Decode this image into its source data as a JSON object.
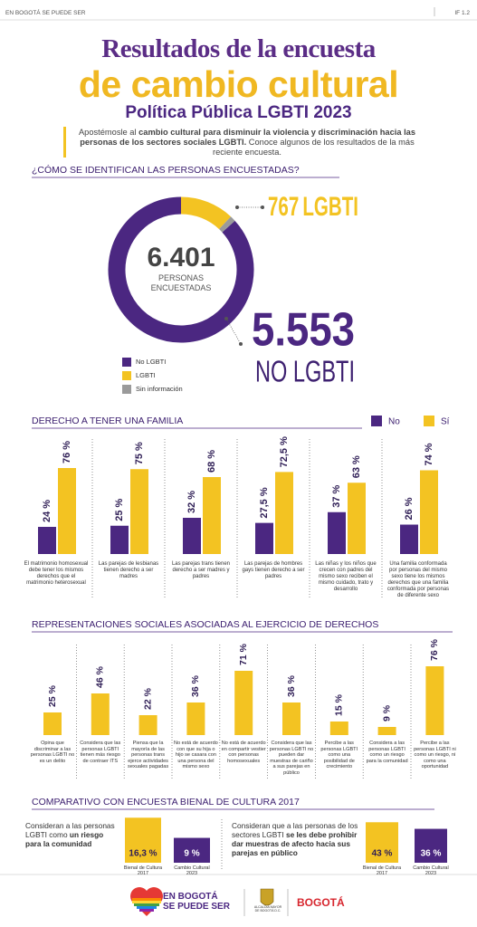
{
  "header": {
    "top_left": "EN BOGOTÁ SE PUEDE SER",
    "top_right": "IF 1.2",
    "title_line1": "Resultados de la encuesta",
    "title_line2": "de cambio cultural",
    "subtitle": "Política Pública LGBTI 2023",
    "intro": [
      {
        "text": "Apostémosle al "
      },
      {
        "text": "cambio cultural para disminuir la violencia y discriminación hacia las personas de los sectores sociales LGBTI.",
        "bold": true
      },
      {
        "text": " Conoce algunos de los resultados de la más reciente encuesta."
      }
    ]
  },
  "chart_data": [
    {
      "type": "pie",
      "donut": true,
      "title": "¿CÓMO SE IDENTIFICAN LAS PERSONAS ENCUESTADAS?",
      "center_text": "6.401",
      "center_label": "PERSONAS ENCUESTADAS",
      "categories": [
        "No LGBTI",
        "LGBTI",
        "Sin información"
      ],
      "values": [
        5553,
        767,
        81
      ],
      "value_labels": [
        "5.553",
        "767",
        null
      ],
      "callout_texts": [
        "NO LGBTI",
        "LGBTI",
        null
      ],
      "colors": [
        "#4b2781",
        "#f3c322",
        "#9a9a9a"
      ]
    },
    {
      "type": "grouped_bar",
      "title": "DERECHO A TENER UNA FAMILIA",
      "categories": [
        "El matrimonio homosexual debe tener los mismos derechos que el matrimonio heterosexual",
        "Las parejas de lesbianas tienen derecho a ser madres",
        "Las parejas trans tienen derecho a ser madres y padres",
        "Las parejas de hombres gays tienen derecho a ser padres",
        "Las niñas y los niños que crecen con padres del mismo sexo reciben el mismo cuidado, trato y desarrollo",
        "Una familia conformada por personas del mismo sexo tiene los mismos derechos que una familia conformada por personas de diferente sexo"
      ],
      "series": [
        {
          "name": "No",
          "color": "#4b2781",
          "values": [
            24,
            25,
            32,
            27.5,
            37,
            26
          ],
          "value_labels": [
            "24 %",
            "25 %",
            "32 %",
            "27,5 %",
            "37 %",
            "26 %"
          ]
        },
        {
          "name": "Sí",
          "color": "#f3c322",
          "values": [
            76,
            75,
            68,
            72.5,
            63,
            74
          ],
          "value_labels": [
            "76 %",
            "75 %",
            "68 %",
            "72,5 %",
            "63 %",
            "74 %"
          ]
        }
      ],
      "ylim": [
        0,
        100
      ]
    },
    {
      "type": "bar",
      "title": "REPRESENTACIONES SOCIALES ASOCIADAS AL EJERCICIO DE DERECHOS",
      "categories": [
        "Opina que discriminar a las personas LGBTI no es un delito",
        "Considera que las personas LGBTI tienen más riesgo de contraer ITS",
        "Piensa que la mayoría de las personas trans ejerce actividades sexuales pagadas",
        "No está de acuerdo con que su hija o hijo se casara con una persona del mismo sexo",
        "No está de acuerdo en compartir vestier con personas homosexuales",
        "Considera que las personas LGBTI no pueden dar muestras de cariño a sus parejas en público",
        "Percibe a las personas LGBTI como una posibilidad de crecimiento",
        "Considera a las personas LGBTI como un riesgo para la comunidad",
        "Percibe a las personas LGBTI ni como un riesgo, ni como una oportunidad"
      ],
      "values": [
        25,
        46,
        22,
        36,
        71,
        36,
        15,
        9,
        76
      ],
      "value_labels": [
        "25 %",
        "46 %",
        "22 %",
        "36 %",
        "71 %",
        "36 %",
        "15 %",
        "9 %",
        "76 %"
      ],
      "color": "#f3c322",
      "ylim": [
        0,
        100
      ]
    },
    {
      "type": "comparison",
      "title": "COMPARATIVO CON ENCUESTA BIENAL DE CULTURA 2017",
      "groups": [
        {
          "text": [
            {
              "text": "Consideran a las personas LGBTI como "
            },
            {
              "text": "un riesgo para la comunidad",
              "bold": true
            }
          ],
          "categories": [
            "Bienal de Cultura 2017",
            "Cambio Cultural 2023"
          ],
          "colors": [
            "#f3c322",
            "#4b2781"
          ],
          "values": [
            16.3,
            9
          ],
          "value_labels": [
            "16,3 %",
            "9 %"
          ],
          "ylim": [
            0,
            20
          ]
        },
        {
          "text": [
            {
              "text": "Consideran que a las personas de los sectores LGBTI "
            },
            {
              "text": "se les debe prohibir dar muestras de afecto hacia sus parejas en público",
              "bold": true
            }
          ],
          "categories": [
            "Bienal de Cultura 2017",
            "Cambio Cultural 2023"
          ],
          "colors": [
            "#f3c322",
            "#4b2781"
          ],
          "values": [
            43,
            36
          ],
          "value_labels": [
            "43 %",
            "36 %"
          ],
          "ylim": [
            0,
            50
          ]
        }
      ]
    }
  ],
  "footer": {
    "logo_line1": "EN BOGOTÁ",
    "logo_line2": "SE PUEDE SER",
    "alcaldia": "ALCALDÍA MAYOR DE BOGOTÁ D.C.",
    "bogota": "BOGOTÁ"
  }
}
